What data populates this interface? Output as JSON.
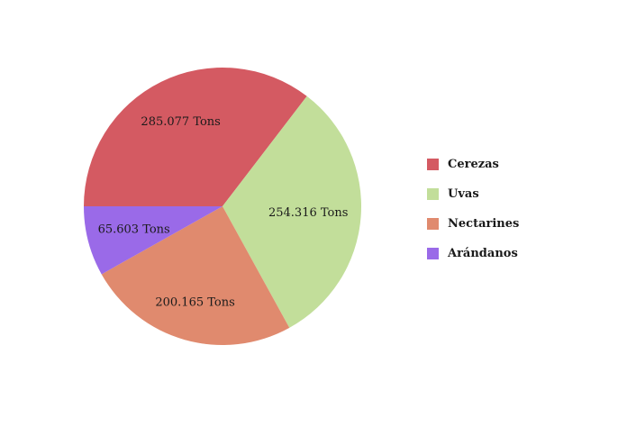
{
  "chart_data": {
    "type": "pie",
    "categories": [
      "Cerezas",
      "Uvas",
      "Nectarines",
      "Arándanos"
    ],
    "values": [
      285.077,
      254.316,
      200.165,
      65.603
    ],
    "labels": [
      "285.077 Tons",
      "254.316 Tons",
      "200.165 Tons",
      "65.603 Tons"
    ],
    "colors": [
      "#d45a62",
      "#c2de9a",
      "#e08a6e",
      "#9a6ae8"
    ],
    "start_angle_deg": 180,
    "direction": "clockwise",
    "legend": "right"
  }
}
